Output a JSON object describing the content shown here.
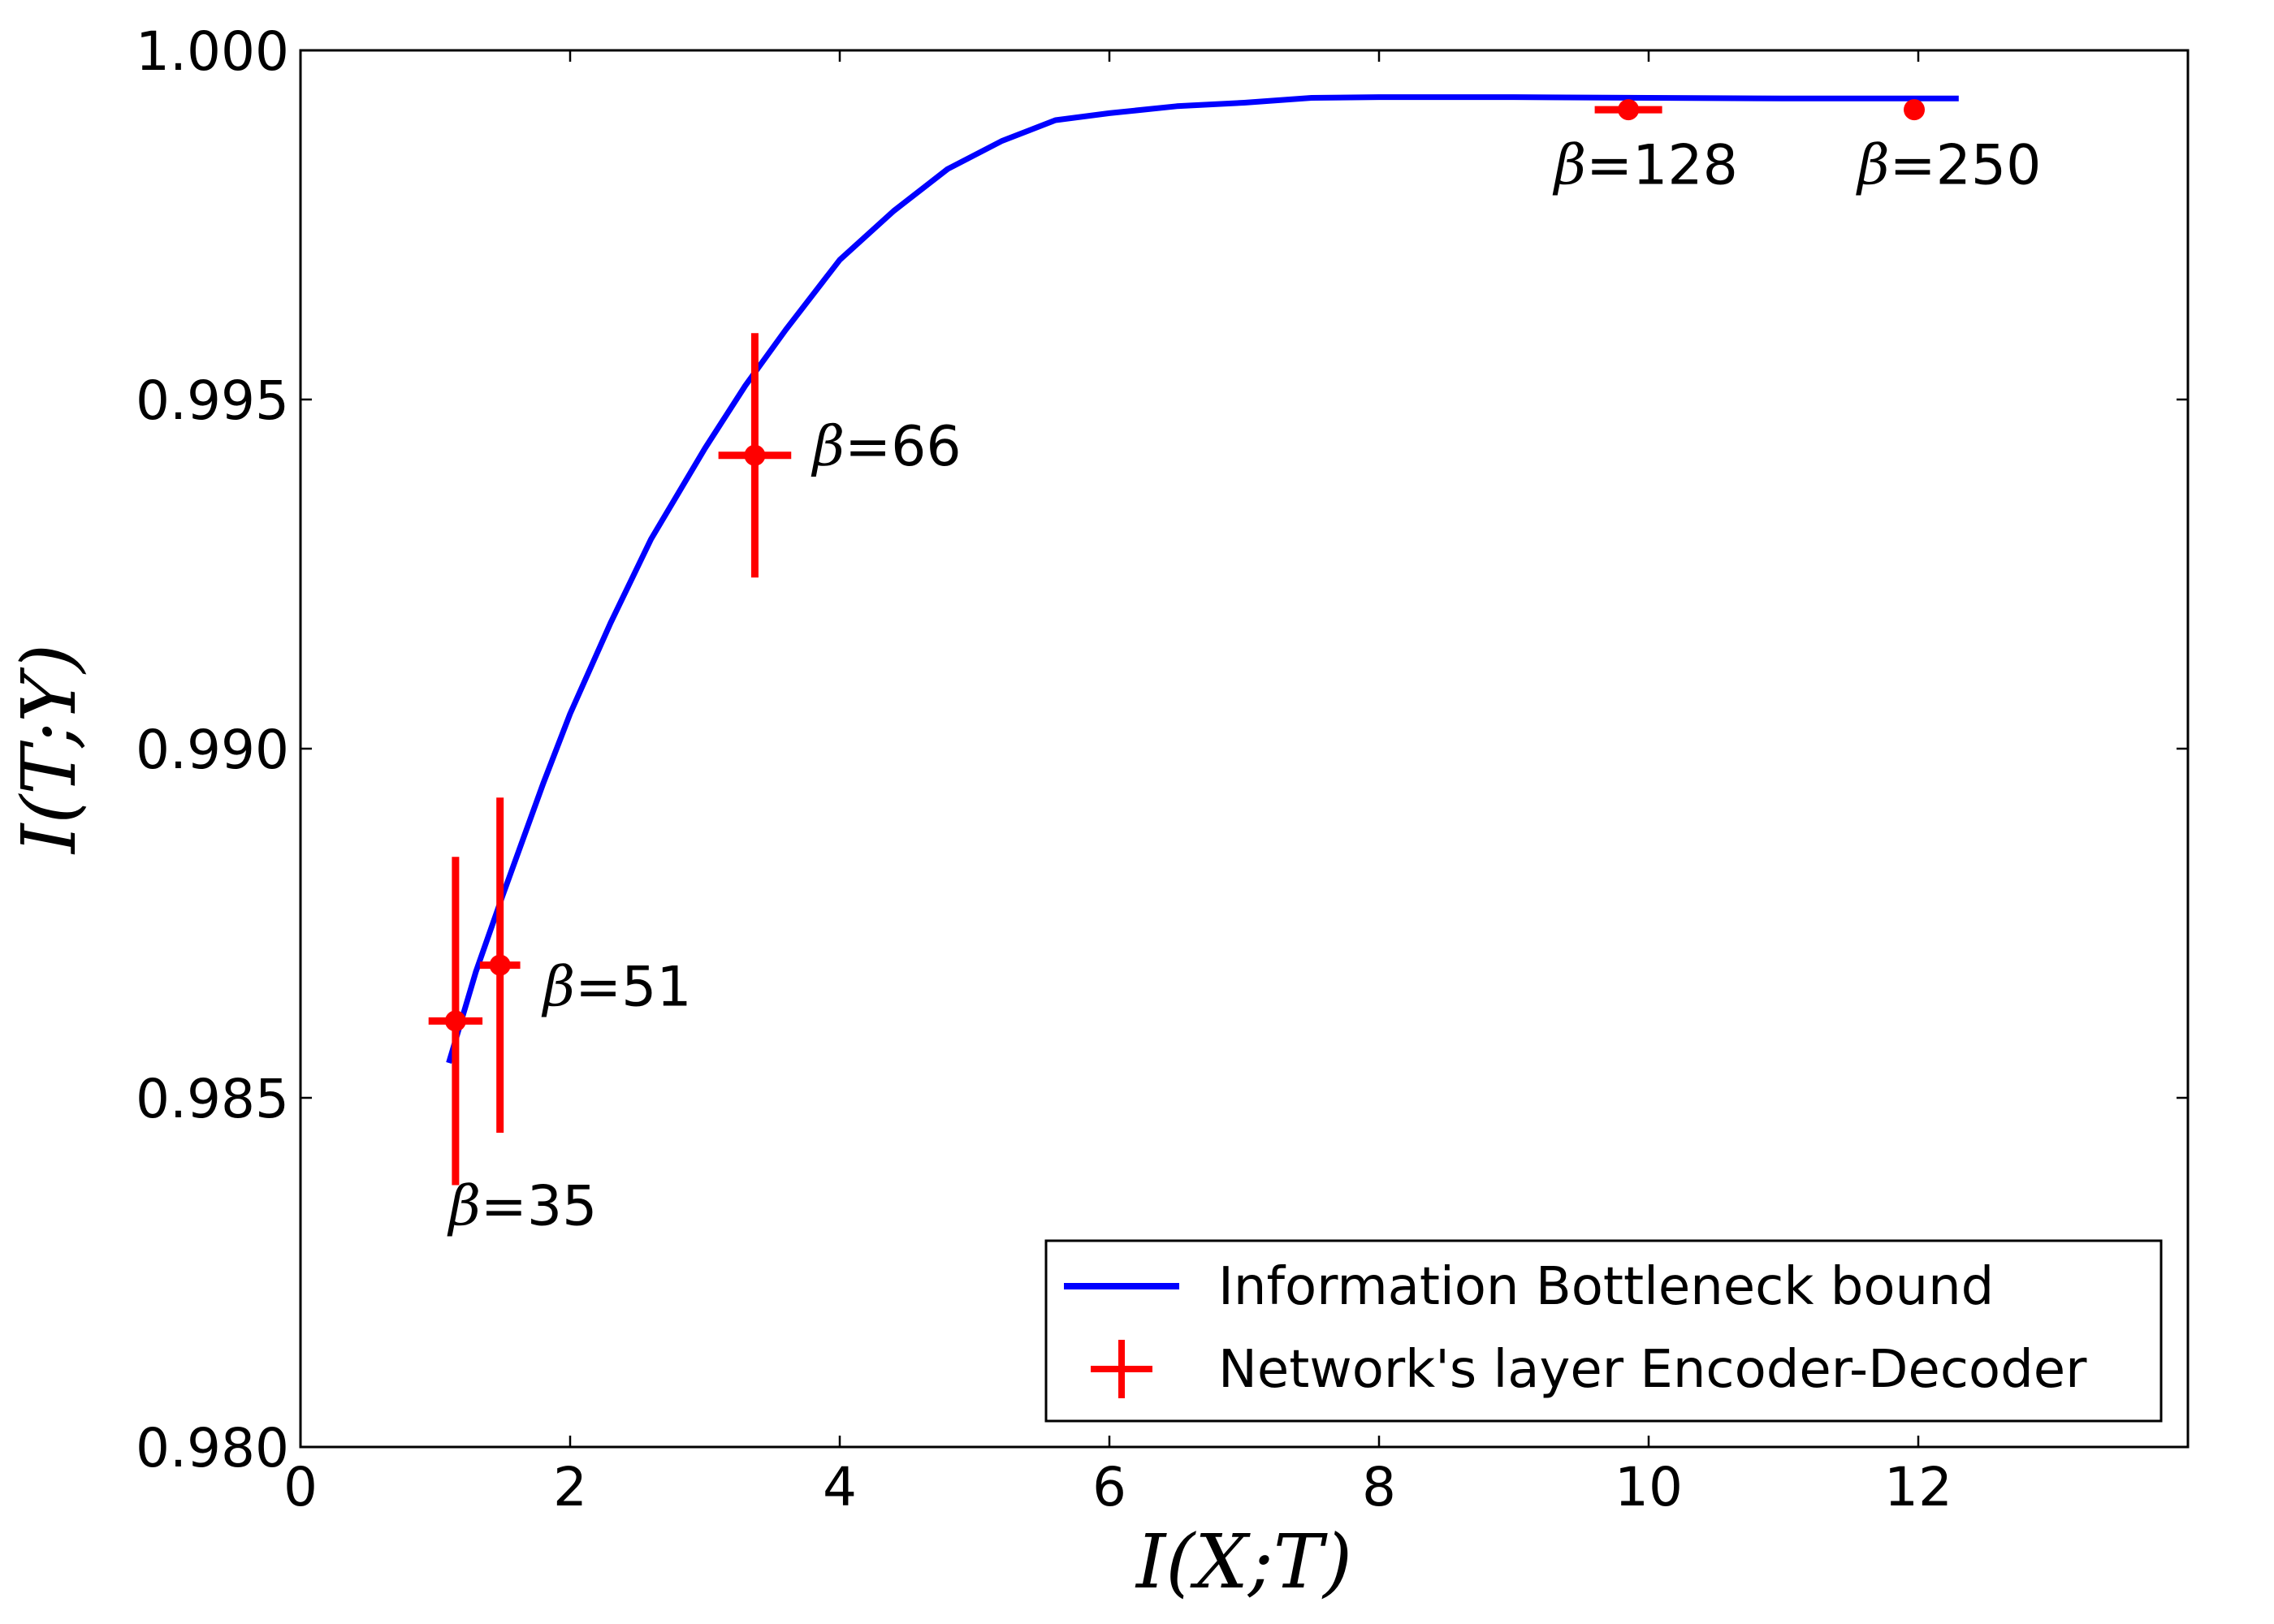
{
  "chart_data": {
    "type": "line",
    "title": "",
    "xlabel": "I(X;T)",
    "ylabel": "I(T;Y)",
    "xlim": [
      0,
      14
    ],
    "ylim": [
      0.98,
      1.0
    ],
    "xticks": [
      0,
      2,
      4,
      6,
      8,
      10,
      12
    ],
    "xtick_labels": [
      "0",
      "2",
      "4",
      "6",
      "8",
      "10",
      "12"
    ],
    "yticks": [
      0.98,
      0.985,
      0.99,
      0.995,
      1.0
    ],
    "ytick_labels": [
      "0.980",
      "0.985",
      "0.990",
      "0.995",
      "1.000"
    ],
    "grid": false,
    "legend": {
      "placement": "lower-right"
    },
    "series": [
      {
        "name": "Information Bottleneck bound",
        "type": "line",
        "color": "#0000ff",
        "x": [
          1.1,
          1.3,
          1.5,
          1.8,
          2.0,
          2.3,
          2.6,
          3.0,
          3.3,
          3.6,
          4.0,
          4.4,
          4.8,
          5.2,
          5.6,
          6.0,
          6.5,
          7.0,
          7.5,
          8.0,
          9.0,
          10.0,
          11.0,
          12.3
        ],
        "y": [
          0.9855,
          0.9868,
          0.9879,
          0.9895,
          0.9905,
          0.9918,
          0.993,
          0.9943,
          0.9952,
          0.996,
          0.997,
          0.9977,
          0.9983,
          0.9987,
          0.999,
          0.9991,
          0.9992,
          0.99925,
          0.99932,
          0.99933,
          0.99933,
          0.99932,
          0.99931,
          0.99931
        ]
      },
      {
        "name": "Network's layer Encoder-Decoder",
        "type": "errorbar",
        "color": "#ff0000",
        "points": [
          {
            "label": "35",
            "x": 1.15,
            "y": 0.9861,
            "xerr": 0.2,
            "yerr": 0.00235
          },
          {
            "label": "51",
            "x": 1.48,
            "y": 0.9869,
            "xerr": 0.15,
            "yerr": 0.0024
          },
          {
            "label": "66",
            "x": 3.37,
            "y": 0.9942,
            "xerr": 0.27,
            "yerr": 0.00175
          },
          {
            "label": "128",
            "x": 9.85,
            "y": 0.99915,
            "xerr": 0.25,
            "yerr": 0.0
          },
          {
            "label": "250",
            "x": 11.97,
            "y": 0.99915,
            "xerr": 0.0,
            "yerr": 0.0
          }
        ]
      }
    ],
    "annotations": [
      {
        "text": "β=35",
        "x": 1.1,
        "y": 0.98318
      },
      {
        "text": "β=51",
        "x": 1.8,
        "y": 0.98632
      },
      {
        "text": "β=66",
        "x": 3.8,
        "y": 0.99406
      },
      {
        "text": "β=128",
        "x": 9.3,
        "y": 0.99809
      },
      {
        "text": "β=250",
        "x": 11.55,
        "y": 0.99809
      }
    ]
  }
}
